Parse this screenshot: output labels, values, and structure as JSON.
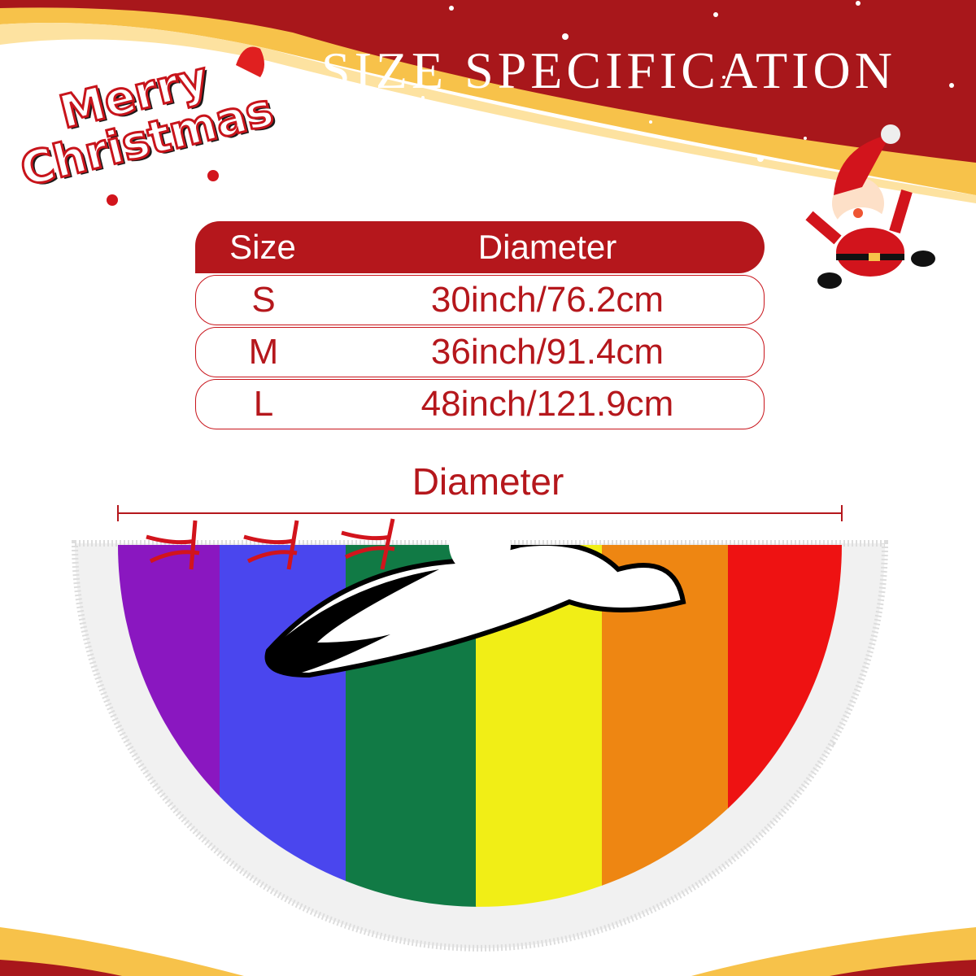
{
  "header": {
    "title": "SIZE SPECIFICATION",
    "logo_line1": "Merry",
    "logo_line2": "Christmas"
  },
  "size_table": {
    "headers": [
      "Size",
      "Diameter"
    ],
    "rows": [
      {
        "size": "S",
        "diameter": "30inch/76.2cm"
      },
      {
        "size": "M",
        "diameter": "36inch/91.4cm"
      },
      {
        "size": "L",
        "diameter": "48inch/121.9cm"
      }
    ]
  },
  "diagram": {
    "dimension_label": "Diameter"
  },
  "colors": {
    "brand_red": "#b5171c",
    "gold": "#f7c24a",
    "stripes": [
      "#8a17c0",
      "#4a46ee",
      "#117a45",
      "#f1ee16",
      "#ee8612",
      "#ee1212"
    ]
  }
}
